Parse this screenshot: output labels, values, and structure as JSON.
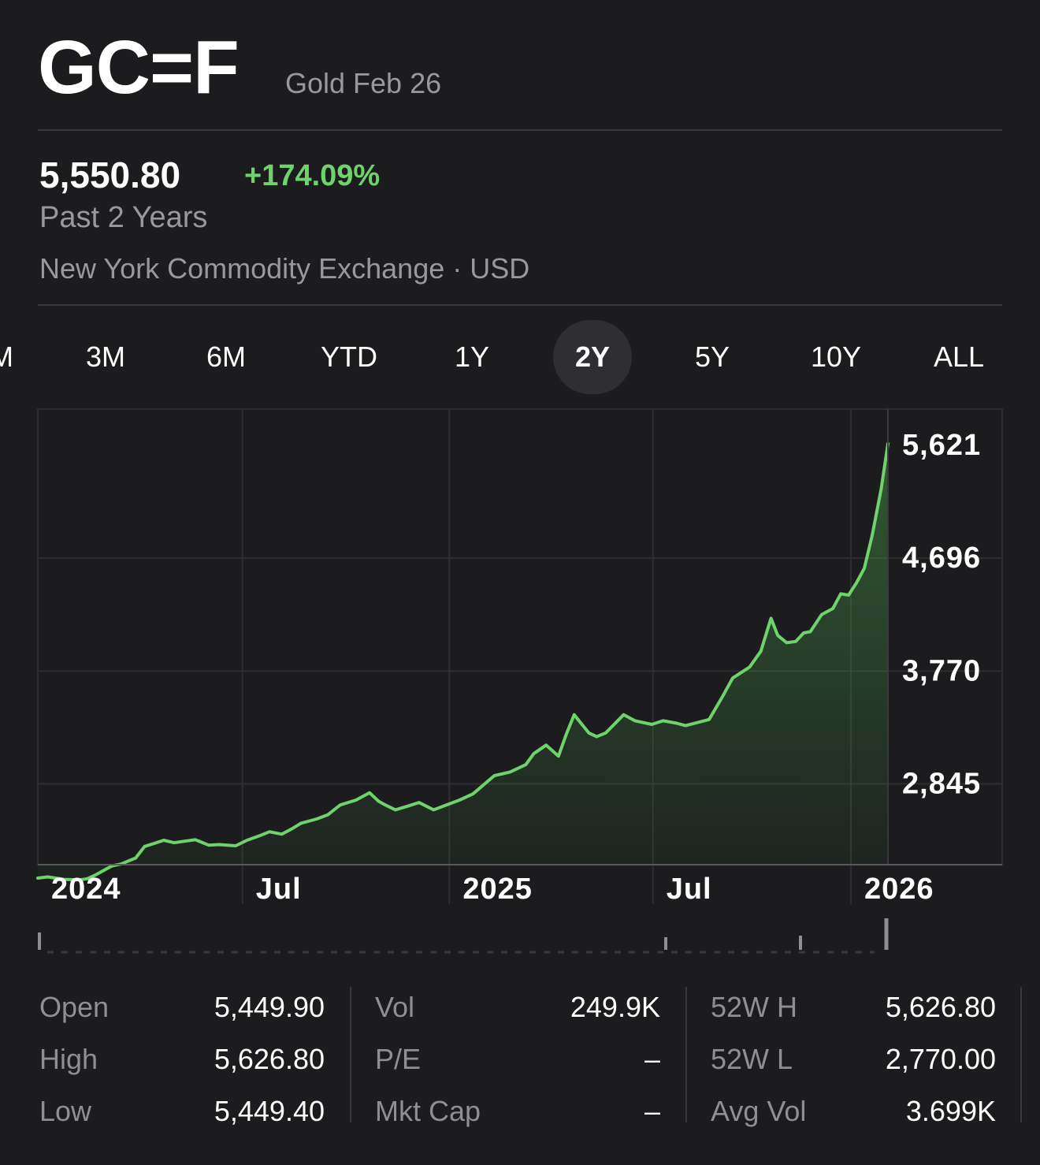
{
  "header": {
    "symbol": "GC=F",
    "name": "Gold Feb 26"
  },
  "quote": {
    "price": "5,550.80",
    "change": "+174.09%",
    "period": "Past 2 Years",
    "exchange": "New York Commodity Exchange · USD"
  },
  "ranges": [
    {
      "label": "M"
    },
    {
      "label": "3M"
    },
    {
      "label": "6M"
    },
    {
      "label": "YTD"
    },
    {
      "label": "1Y"
    },
    {
      "label": "2Y",
      "active": true
    },
    {
      "label": "5Y"
    },
    {
      "label": "10Y"
    },
    {
      "label": "ALL"
    }
  ],
  "colors": {
    "accent_green": "#6fd36b",
    "background": "#1c1c1e",
    "muted_text": "#98989f"
  },
  "chart_data": {
    "type": "area",
    "x_tick_labels": [
      "2024",
      "Jul",
      "2025",
      "Jul",
      "2026"
    ],
    "x_ticks": [
      "2024-01-01",
      "2024-07-01",
      "2025-01-01",
      "2025-07-01",
      "2026-01-01"
    ],
    "xlim": [
      "2024-01-01",
      "2026-01-26"
    ],
    "y_tick_labels": [
      "5,621",
      "4,696",
      "3,770",
      "2,845"
    ],
    "y_ticks": [
      5621,
      4696,
      3770,
      2845
    ],
    "ylim": [
      2170,
      5905
    ],
    "grid": true,
    "series": [
      {
        "x": [
          "2024-01-01",
          "2024-01-10",
          "2024-01-24",
          "2024-02-07",
          "2024-02-14",
          "2024-02-21",
          "2024-03-07",
          "2024-03-15",
          "2024-03-28",
          "2024-04-05",
          "2024-04-12",
          "2024-04-22",
          "2024-05-01",
          "2024-05-20",
          "2024-06-01",
          "2024-06-10",
          "2024-06-25",
          "2024-07-05",
          "2024-07-17",
          "2024-07-25",
          "2024-08-05",
          "2024-08-15",
          "2024-08-22",
          "2024-09-05",
          "2024-09-15",
          "2024-09-26",
          "2024-10-10",
          "2024-10-22",
          "2024-10-30",
          "2024-11-05",
          "2024-11-14",
          "2024-11-25",
          "2024-12-05",
          "2024-12-18",
          "2025-01-10",
          "2025-01-22",
          "2025-02-10",
          "2025-02-24",
          "2025-03-10",
          "2025-03-17",
          "2025-03-28",
          "2025-04-08",
          "2025-04-15",
          "2025-04-22",
          "2025-04-28",
          "2025-05-05",
          "2025-05-12",
          "2025-05-20",
          "2025-06-05",
          "2025-06-15",
          "2025-06-30",
          "2025-07-10",
          "2025-07-22",
          "2025-07-30",
          "2025-08-20",
          "2025-09-01",
          "2025-09-10",
          "2025-09-25",
          "2025-10-05",
          "2025-10-14",
          "2025-10-20",
          "2025-10-28",
          "2025-11-05",
          "2025-11-12",
          "2025-11-18",
          "2025-11-28",
          "2025-12-08",
          "2025-12-15",
          "2025-12-22",
          "2025-12-29",
          "2026-01-05",
          "2026-01-12",
          "2026-01-20",
          "2026-01-26"
        ],
        "y": [
          2060,
          2070,
          2050,
          2045,
          2055,
          2085,
          2160,
          2175,
          2225,
          2320,
          2340,
          2370,
          2350,
          2375,
          2330,
          2335,
          2325,
          2370,
          2410,
          2440,
          2420,
          2470,
          2510,
          2545,
          2580,
          2660,
          2700,
          2760,
          2690,
          2660,
          2620,
          2650,
          2680,
          2620,
          2700,
          2750,
          2900,
          2930,
          2990,
          3080,
          3150,
          3060,
          3240,
          3400,
          3330,
          3250,
          3220,
          3250,
          3400,
          3350,
          3320,
          3350,
          3330,
          3310,
          3360,
          3550,
          3700,
          3790,
          3920,
          4190,
          4050,
          3990,
          4000,
          4070,
          4080,
          4220,
          4270,
          4390,
          4380,
          4480,
          4600,
          4870,
          5250,
          5621
        ]
      }
    ]
  },
  "stats": {
    "col1": [
      {
        "label": "Open",
        "value": "5,449.90"
      },
      {
        "label": "High",
        "value": "5,626.80"
      },
      {
        "label": "Low",
        "value": "5,449.40"
      }
    ],
    "col2": [
      {
        "label": "Vol",
        "value": "249.9K"
      },
      {
        "label": "P/E",
        "value": "–"
      },
      {
        "label": "Mkt Cap",
        "value": "–"
      }
    ],
    "col3": [
      {
        "label": "52W H",
        "value": "5,626.80"
      },
      {
        "label": "52W L",
        "value": "2,770.00"
      },
      {
        "label": "Avg Vol",
        "value": "3.699K"
      }
    ]
  }
}
